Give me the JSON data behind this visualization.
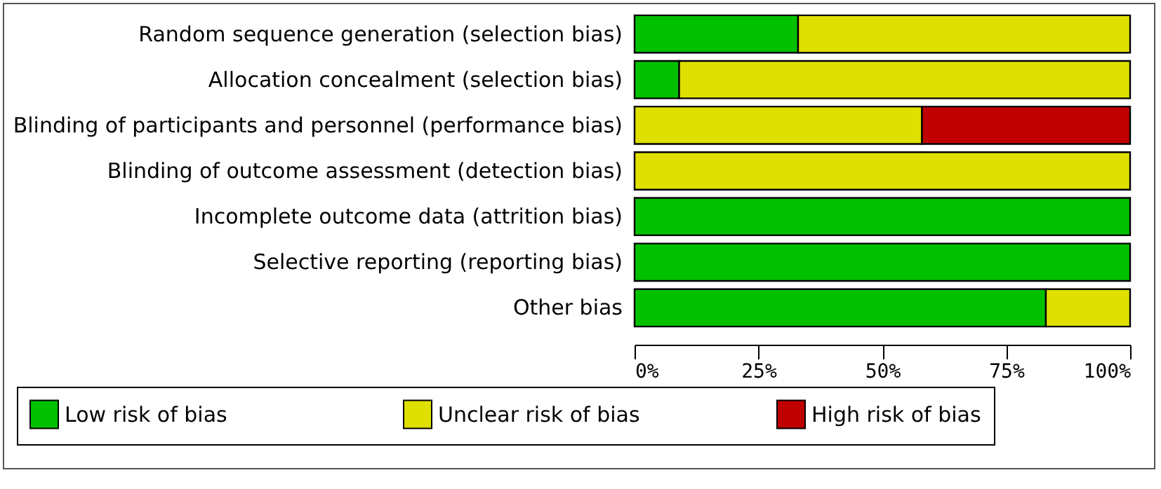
{
  "chart_data": {
    "type": "bar",
    "orientation": "horizontal",
    "stacked": true,
    "categories": [
      "Random sequence generation (selection bias)",
      "Allocation concealment (selection bias)",
      "Blinding of participants and personnel (performance bias)",
      "Blinding of outcome assessment (detection bias)",
      "Incomplete outcome data (attrition bias)",
      "Selective reporting (reporting bias)",
      "Other bias"
    ],
    "series": [
      {
        "name": "Low risk of bias",
        "color": "#00c000",
        "values": [
          33,
          9,
          0,
          0,
          100,
          100,
          83
        ]
      },
      {
        "name": "Unclear risk of bias",
        "color": "#e0e000",
        "values": [
          67,
          91,
          58,
          100,
          0,
          0,
          17
        ]
      },
      {
        "name": "High risk of bias",
        "color": "#c00000",
        "values": [
          0,
          0,
          42,
          0,
          0,
          0,
          0
        ]
      }
    ],
    "xlim": [
      0,
      100
    ],
    "xticks": [
      {
        "value": 0,
        "label": "0%"
      },
      {
        "value": 25,
        "label": "25%"
      },
      {
        "value": 50,
        "label": "50%"
      },
      {
        "value": 75,
        "label": "75%"
      },
      {
        "value": 100,
        "label": "100%"
      }
    ],
    "legend": "bottom"
  }
}
